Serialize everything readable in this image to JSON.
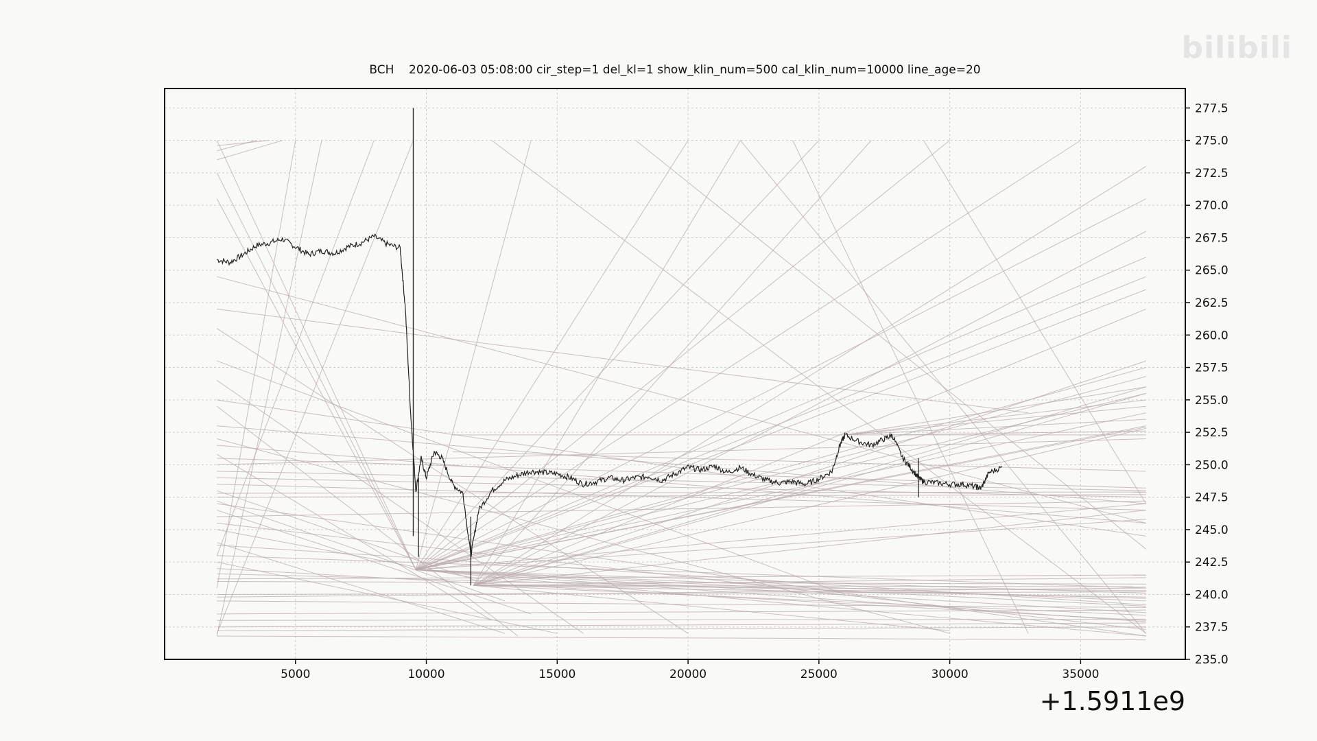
{
  "watermark": "bilibili",
  "chart_data": {
    "type": "line",
    "title": "BCH    2020-06-03 05:08:00 cir_step=1 del_kl=1 show_klin_num=500 cal_klin_num=10000 line_age=20",
    "x_offset_label": "+1.5911e9",
    "xlim": [
      0,
      39000
    ],
    "ylim": [
      235,
      279
    ],
    "y_axis_side": "right",
    "grid": true,
    "x_ticks": [
      5000,
      10000,
      15000,
      20000,
      25000,
      30000,
      35000
    ],
    "x_tick_labels": [
      "5000",
      "10000",
      "15000",
      "20000",
      "25000",
      "30000",
      "35000"
    ],
    "y_ticks": [
      235.0,
      237.5,
      240.0,
      242.5,
      245.0,
      247.5,
      250.0,
      252.5,
      255.0,
      257.5,
      260.0,
      262.5,
      265.0,
      267.5,
      270.0,
      272.5,
      275.0,
      277.5
    ],
    "y_tick_labels": [
      "235.0",
      "237.5",
      "240.0",
      "242.5",
      "245.0",
      "247.5",
      "250.0",
      "252.5",
      "255.0",
      "257.5",
      "260.0",
      "262.5",
      "265.0",
      "267.5",
      "270.0",
      "272.5",
      "275.0",
      "277.5"
    ],
    "price_series": {
      "name": "",
      "color": "#222222",
      "x": [
        2000,
        2500,
        3000,
        3500,
        4000,
        4500,
        5000,
        5500,
        6000,
        6500,
        7000,
        7500,
        8000,
        8500,
        9000,
        9200,
        9400,
        9600,
        9800,
        10000,
        10300,
        10600,
        11000,
        11400,
        11700,
        12000,
        12500,
        13000,
        13500,
        14000,
        14500,
        15000,
        15500,
        16000,
        16500,
        17000,
        17500,
        18000,
        18500,
        19000,
        19500,
        20000,
        20500,
        21000,
        21500,
        22000,
        22500,
        23000,
        23500,
        24000,
        24500,
        25000,
        25500,
        25800,
        26000,
        26500,
        27000,
        27500,
        27800,
        28200,
        28500,
        28800,
        29000,
        29500,
        30000,
        30500,
        31000,
        31200,
        31500,
        32000
      ],
      "y": [
        265.8,
        265.6,
        266.2,
        266.9,
        267.1,
        267.4,
        266.8,
        266.2,
        266.5,
        266.3,
        266.8,
        267.1,
        267.6,
        267.0,
        266.7,
        262.0,
        254.0,
        248.0,
        250.5,
        249.0,
        251.0,
        250.5,
        248.5,
        247.8,
        243.0,
        246.5,
        248.0,
        248.8,
        249.2,
        249.5,
        249.4,
        249.3,
        249.0,
        248.5,
        248.7,
        249.0,
        248.8,
        249.0,
        249.1,
        248.8,
        249.3,
        249.8,
        249.6,
        249.9,
        249.4,
        249.8,
        249.2,
        248.8,
        248.6,
        248.7,
        248.5,
        248.9,
        249.5,
        251.5,
        252.3,
        251.8,
        251.5,
        252.0,
        252.3,
        250.5,
        249.8,
        249.0,
        248.7,
        248.6,
        248.5,
        248.5,
        248.3,
        248.2,
        249.4,
        249.8
      ],
      "spikes": [
        {
          "x": 9500,
          "low": 244.5,
          "high": 277.5
        },
        {
          "x": 9700,
          "low": 242.9,
          "high": 249.0
        },
        {
          "x": 11700,
          "low": 240.7,
          "high": 246.0
        },
        {
          "x": 28800,
          "low": 247.5,
          "high": 250.5
        }
      ]
    },
    "trend_lines": [
      [
        2000,
        264.5,
        37500,
        245.5
      ],
      [
        2000,
        262.0,
        33000,
        254.0
      ],
      [
        2000,
        258.0,
        26000,
        240.0
      ],
      [
        2000,
        255.0,
        37500,
        244.5
      ],
      [
        2000,
        253.0,
        37500,
        247.0
      ],
      [
        2000,
        251.5,
        37500,
        245.5
      ],
      [
        2000,
        249.5,
        37500,
        248.0
      ],
      [
        2000,
        249.0,
        37500,
        247.5
      ],
      [
        2000,
        248.5,
        37500,
        246.5
      ],
      [
        2000,
        247.8,
        37500,
        247.9
      ],
      [
        2000,
        247.5,
        37500,
        247.7
      ],
      [
        2000,
        246.0,
        37500,
        247.2
      ],
      [
        2000,
        245.0,
        12000,
        241.2
      ],
      [
        2000,
        243.0,
        37500,
        240.5
      ],
      [
        2000,
        242.0,
        37500,
        238.0
      ],
      [
        2000,
        241.2,
        37500,
        241.5
      ],
      [
        2000,
        241.0,
        37500,
        240.8
      ],
      [
        2000,
        240.0,
        37500,
        240.2
      ],
      [
        2000,
        239.5,
        37500,
        239.0
      ],
      [
        2000,
        238.5,
        37500,
        238.8
      ],
      [
        2000,
        238.0,
        37500,
        238.1
      ],
      [
        2000,
        237.5,
        37500,
        237.8
      ],
      [
        2000,
        237.2,
        37500,
        237.5
      ],
      [
        2000,
        236.8,
        37500,
        236.5
      ],
      [
        2000,
        244.0,
        13000,
        237.0
      ],
      [
        2000,
        239.8,
        37500,
        240.5
      ],
      [
        2000,
        241.6,
        37500,
        239.7
      ],
      [
        2000,
        243.8,
        37500,
        239.2
      ],
      [
        2000,
        247.0,
        37500,
        236.8
      ],
      [
        2000,
        260.5,
        20000,
        237.0
      ],
      [
        2000,
        256.5,
        16000,
        237.0
      ],
      [
        2000,
        252.0,
        30000,
        237.0
      ],
      [
        2000,
        245.5,
        37500,
        237.3
      ],
      [
        9600,
        241.9,
        37500,
        236.8
      ],
      [
        9600,
        241.9,
        37500,
        237.9
      ],
      [
        9600,
        241.9,
        37500,
        238.6
      ],
      [
        9600,
        241.9,
        37500,
        239.1
      ],
      [
        9600,
        241.9,
        37500,
        239.5
      ],
      [
        9600,
        241.9,
        37500,
        240.1
      ],
      [
        11800,
        240.7,
        37500,
        240.6
      ],
      [
        11800,
        240.7,
        37500,
        240.3
      ],
      [
        11800,
        240.7,
        37500,
        239.8
      ],
      [
        11800,
        240.7,
        37500,
        238.4
      ],
      [
        11800,
        240.7,
        30000,
        237.2
      ],
      [
        11800,
        240.7,
        37500,
        241.3
      ],
      [
        9600,
        241.9,
        37500,
        270.5
      ],
      [
        9600,
        241.9,
        37500,
        264.5
      ],
      [
        9600,
        241.9,
        37500,
        263.5
      ],
      [
        9600,
        241.9,
        37500,
        257.5
      ],
      [
        9600,
        241.9,
        37500,
        256.8
      ],
      [
        9600,
        241.9,
        37500,
        255.5
      ],
      [
        9600,
        241.9,
        37500,
        254.0
      ],
      [
        9600,
        241.9,
        37500,
        253.0
      ],
      [
        9600,
        241.9,
        35000,
        275.0
      ],
      [
        9600,
        241.9,
        30000,
        275.0
      ],
      [
        9600,
        241.9,
        25000,
        275.0
      ],
      [
        9600,
        241.9,
        20000,
        275.0
      ],
      [
        9600,
        241.9,
        14000,
        275.0
      ],
      [
        11800,
        240.7,
        37500,
        273.0
      ],
      [
        11800,
        240.7,
        37500,
        268.0
      ],
      [
        11800,
        240.7,
        37500,
        262.0
      ],
      [
        11800,
        240.7,
        37500,
        258.0
      ],
      [
        11800,
        240.7,
        37500,
        256.0
      ],
      [
        11800,
        240.7,
        37500,
        252.8
      ],
      [
        11800,
        240.7,
        27000,
        275.0
      ],
      [
        11800,
        240.7,
        22000,
        275.0
      ],
      [
        2000,
        237.0,
        9500,
        275.0
      ],
      [
        2000,
        236.8,
        6000,
        275.0
      ],
      [
        2000,
        243.0,
        8000,
        275.0
      ],
      [
        2000,
        240.5,
        5000,
        275.0
      ],
      [
        2000,
        275.0,
        9600,
        241.9
      ],
      [
        2000,
        272.5,
        9600,
        241.9
      ],
      [
        2000,
        270.5,
        9600,
        241.9
      ],
      [
        2000,
        273.5,
        4500,
        275.0
      ],
      [
        2000,
        274.2,
        3500,
        275.0
      ],
      [
        2000,
        274.6,
        4000,
        275.0
      ],
      [
        12500,
        275.0,
        37500,
        237.0
      ],
      [
        22000,
        275.0,
        37500,
        237.0
      ],
      [
        24000,
        275.0,
        33000,
        237.0
      ],
      [
        29000,
        275.0,
        37500,
        247.0
      ],
      [
        18000,
        275.0,
        37500,
        243.5
      ],
      [
        26000,
        252.3,
        37500,
        256.0
      ],
      [
        26000,
        252.3,
        37500,
        254.5
      ],
      [
        26000,
        252.3,
        37500,
        253.5
      ],
      [
        27800,
        252.3,
        37500,
        252.6
      ],
      [
        26000,
        252.3,
        37500,
        255.0
      ],
      [
        9600,
        241.9,
        37500,
        252.9
      ],
      [
        9600,
        241.9,
        37500,
        266.0
      ],
      [
        11800,
        240.7,
        37500,
        255.5
      ],
      [
        2000,
        250.0,
        37500,
        252.0
      ],
      [
        2000,
        250.5,
        37500,
        248.2
      ],
      [
        11000,
        251.0,
        37500,
        249.5
      ],
      [
        11000,
        252.3,
        37500,
        252.3
      ],
      [
        9600,
        241.9,
        37500,
        247.0
      ],
      [
        9600,
        241.9,
        37500,
        245.8
      ],
      [
        11800,
        240.7,
        37500,
        246.5
      ],
      [
        2000,
        248.0,
        12000,
        241.0
      ],
      [
        2000,
        247.2,
        13000,
        239.5
      ],
      [
        2000,
        246.5,
        14000,
        238.5
      ],
      [
        2000,
        254.5,
        13500,
        236.8
      ],
      [
        2000,
        250.8,
        12500,
        238.0
      ],
      [
        2000,
        242.5,
        15000,
        237.0
      ]
    ],
    "trend_line_color": "#b9a9ab"
  }
}
